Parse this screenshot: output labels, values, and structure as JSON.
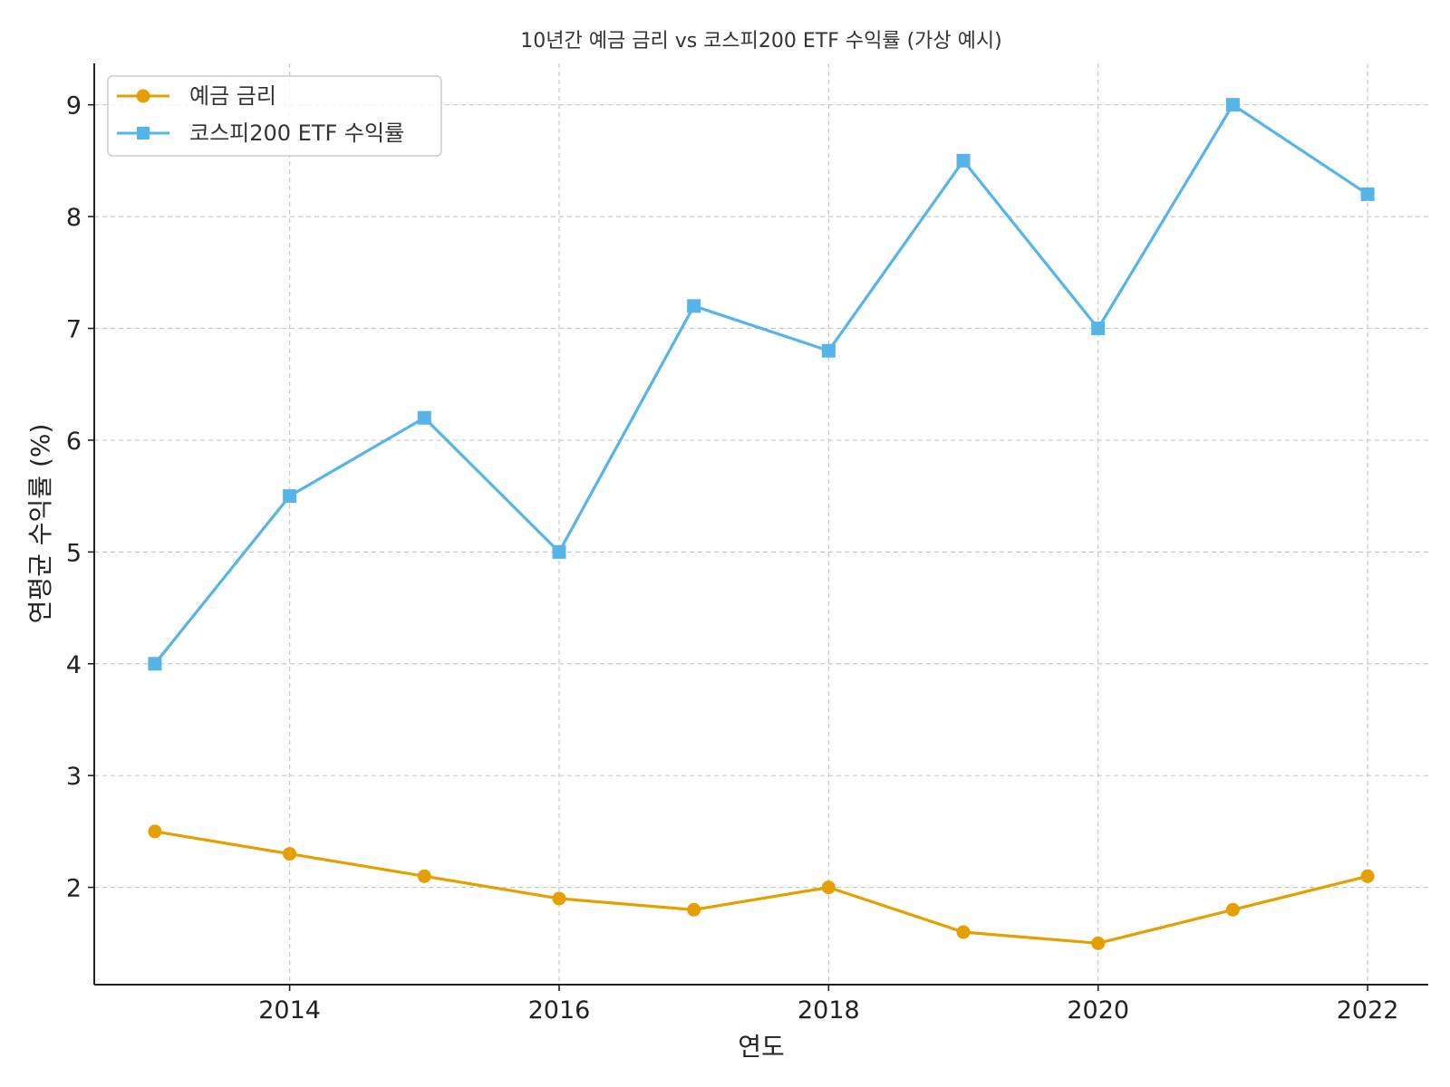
{
  "chart_data": {
    "type": "line",
    "title": "10년간 예금 금리 vs 코스피200 ETF 수익률 (가상 예시)",
    "xlabel": "연도",
    "ylabel": "연평균 수익률 (%)",
    "x": [
      2013,
      2014,
      2015,
      2016,
      2017,
      2018,
      2019,
      2020,
      2021,
      2022
    ],
    "xlim": [
      2012.55,
      2022.45
    ],
    "ylim": [
      1.13,
      9.37
    ],
    "xticks": [
      2014,
      2016,
      2018,
      2020,
      2022
    ],
    "yticks": [
      2,
      3,
      4,
      5,
      6,
      7,
      8,
      9
    ],
    "grid": true,
    "legend_position": "top-left",
    "series": [
      {
        "name": "예금 금리",
        "marker": "circle",
        "color": "#E69F00",
        "values": [
          2.5,
          2.3,
          2.1,
          1.9,
          1.8,
          2.0,
          1.6,
          1.5,
          1.8,
          2.1
        ]
      },
      {
        "name": "코스피200 ETF 수익률",
        "marker": "square",
        "color": "#56B4E9",
        "values": [
          4.0,
          5.5,
          6.2,
          5.0,
          7.2,
          6.8,
          8.5,
          7.0,
          9.0,
          8.2
        ]
      }
    ]
  }
}
